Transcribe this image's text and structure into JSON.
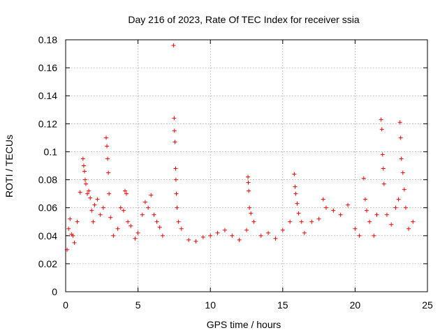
{
  "chart_data": {
    "type": "scatter",
    "title": "Day 216 of 2023, Rate Of TEC Index for receiver ssia",
    "xlabel": "GPS time / hours",
    "ylabel": "ROTI / TECUs",
    "xlim": [
      0,
      25
    ],
    "ylim": [
      0,
      0.18
    ],
    "x_ticks": [
      "0",
      "5",
      "10",
      "15",
      "20",
      "25"
    ],
    "y_ticks": [
      "0",
      "0.02",
      "0.04",
      "0.06",
      "0.08",
      "0.1",
      "0.12",
      "0.14",
      "0.16",
      "0.18"
    ],
    "grid": true,
    "marker": "+",
    "color": "#ff0000",
    "series": [
      {
        "values": [
          [
            0.1,
            0.03
          ],
          [
            0.2,
            0.045
          ],
          [
            0.3,
            0.052
          ],
          [
            0.4,
            0.041
          ],
          [
            0.5,
            0.04
          ],
          [
            0.6,
            0.035
          ],
          [
            0.8,
            0.05
          ],
          [
            1.0,
            0.071
          ],
          [
            1.2,
            0.095
          ],
          [
            1.25,
            0.09
          ],
          [
            1.3,
            0.086
          ],
          [
            1.35,
            0.08
          ],
          [
            1.4,
            0.077
          ],
          [
            1.5,
            0.07
          ],
          [
            1.6,
            0.072
          ],
          [
            1.7,
            0.067
          ],
          [
            1.8,
            0.058
          ],
          [
            1.9,
            0.05
          ],
          [
            2.0,
            0.062
          ],
          [
            2.2,
            0.066
          ],
          [
            2.4,
            0.055
          ],
          [
            2.6,
            0.06
          ],
          [
            2.8,
            0.11
          ],
          [
            2.85,
            0.104
          ],
          [
            2.9,
            0.095
          ],
          [
            2.95,
            0.085
          ],
          [
            3.0,
            0.07
          ],
          [
            3.1,
            0.053
          ],
          [
            3.3,
            0.04
          ],
          [
            3.6,
            0.045
          ],
          [
            3.8,
            0.06
          ],
          [
            4.0,
            0.058
          ],
          [
            4.1,
            0.072
          ],
          [
            4.2,
            0.07
          ],
          [
            4.3,
            0.05
          ],
          [
            4.5,
            0.047
          ],
          [
            4.8,
            0.038
          ],
          [
            5.0,
            0.042
          ],
          [
            5.3,
            0.055
          ],
          [
            5.5,
            0.064
          ],
          [
            5.7,
            0.06
          ],
          [
            5.9,
            0.069
          ],
          [
            6.1,
            0.055
          ],
          [
            6.3,
            0.05
          ],
          [
            6.5,
            0.046
          ],
          [
            6.7,
            0.04
          ],
          [
            7.45,
            0.176
          ],
          [
            7.5,
            0.124
          ],
          [
            7.52,
            0.115
          ],
          [
            7.55,
            0.107
          ],
          [
            7.6,
            0.088
          ],
          [
            7.62,
            0.08
          ],
          [
            7.65,
            0.07
          ],
          [
            7.7,
            0.06
          ],
          [
            7.8,
            0.05
          ],
          [
            8.0,
            0.045
          ],
          [
            8.5,
            0.037
          ],
          [
            9.0,
            0.036
          ],
          [
            9.5,
            0.039
          ],
          [
            10.0,
            0.04
          ],
          [
            10.5,
            0.042
          ],
          [
            11.0,
            0.044
          ],
          [
            11.5,
            0.04
          ],
          [
            12.0,
            0.037
          ],
          [
            12.5,
            0.044
          ],
          [
            12.6,
            0.082
          ],
          [
            12.62,
            0.078
          ],
          [
            12.65,
            0.072
          ],
          [
            12.7,
            0.06
          ],
          [
            12.8,
            0.056
          ],
          [
            13.0,
            0.05
          ],
          [
            13.5,
            0.04
          ],
          [
            14.0,
            0.042
          ],
          [
            14.5,
            0.038
          ],
          [
            15.0,
            0.044
          ],
          [
            15.5,
            0.05
          ],
          [
            15.8,
            0.084
          ],
          [
            15.85,
            0.075
          ],
          [
            15.9,
            0.07
          ],
          [
            16.0,
            0.063
          ],
          [
            16.1,
            0.056
          ],
          [
            16.3,
            0.05
          ],
          [
            16.5,
            0.042
          ],
          [
            17.0,
            0.05
          ],
          [
            17.5,
            0.052
          ],
          [
            17.8,
            0.066
          ],
          [
            18.0,
            0.06
          ],
          [
            18.5,
            0.058
          ],
          [
            19.0,
            0.055
          ],
          [
            19.5,
            0.062
          ],
          [
            20.0,
            0.045
          ],
          [
            20.3,
            0.04
          ],
          [
            20.6,
            0.081
          ],
          [
            20.7,
            0.066
          ],
          [
            20.8,
            0.058
          ],
          [
            21.0,
            0.05
          ],
          [
            21.3,
            0.04
          ],
          [
            21.5,
            0.055
          ],
          [
            21.8,
            0.123
          ],
          [
            21.85,
            0.116
          ],
          [
            21.9,
            0.098
          ],
          [
            21.95,
            0.088
          ],
          [
            22.0,
            0.077
          ],
          [
            22.2,
            0.055
          ],
          [
            22.5,
            0.048
          ],
          [
            22.8,
            0.06
          ],
          [
            23.0,
            0.066
          ],
          [
            23.1,
            0.121
          ],
          [
            23.15,
            0.11
          ],
          [
            23.2,
            0.095
          ],
          [
            23.3,
            0.085
          ],
          [
            23.4,
            0.073
          ],
          [
            23.5,
            0.06
          ],
          [
            23.7,
            0.045
          ],
          [
            24.0,
            0.05
          ]
        ]
      }
    ]
  }
}
